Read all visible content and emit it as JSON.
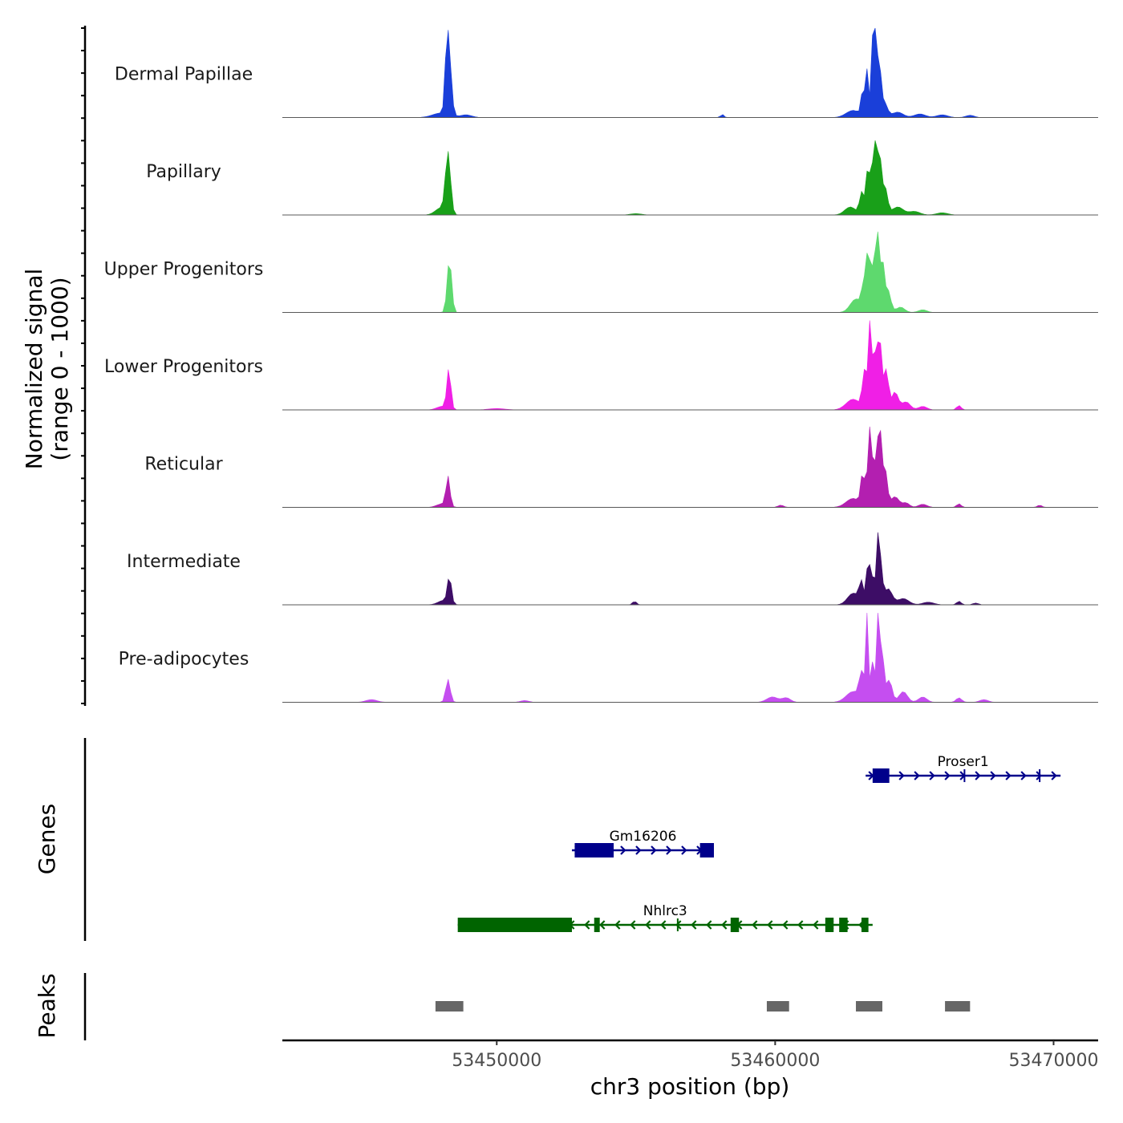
{
  "chart_data": {
    "type": "area",
    "title": "",
    "xlabel": "chr3 position (bp)",
    "ylabel_line1": "Normalized signal",
    "ylabel_line2": "(range 0 - 1000)",
    "genes_label": "Genes",
    "peaks_label": "Peaks",
    "xlim": [
      53442300,
      53471600
    ],
    "ylim": [
      0,
      1000
    ],
    "x_ticks": [
      53450000,
      53460000,
      53470000
    ],
    "x_tick_labels": [
      "53450000",
      "53460000",
      "53470000"
    ],
    "tracks": [
      {
        "name": "Dermal Papillae",
        "color": "#1a3fd9",
        "peaks": [
          [
            53448280,
            700,
            90
          ],
          [
            53448200,
            420,
            60
          ],
          [
            53448000,
            50,
            300
          ],
          [
            53448900,
            30,
            200
          ],
          [
            53458100,
            35,
            60
          ],
          [
            53462800,
            80,
            250
          ],
          [
            53463150,
            300,
            60
          ],
          [
            53463300,
            520,
            50
          ],
          [
            53463500,
            650,
            60
          ],
          [
            53463600,
            860,
            70
          ],
          [
            53463750,
            450,
            60
          ],
          [
            53463900,
            180,
            120
          ],
          [
            53464400,
            60,
            200
          ],
          [
            53465200,
            40,
            200
          ],
          [
            53466000,
            30,
            200
          ],
          [
            53467000,
            25,
            150
          ]
        ]
      },
      {
        "name": "Papillary",
        "color": "#19a019",
        "peaks": [
          [
            53448250,
            680,
            90
          ],
          [
            53448000,
            80,
            200
          ],
          [
            53455000,
            15,
            200
          ],
          [
            53462700,
            90,
            200
          ],
          [
            53463100,
            250,
            70
          ],
          [
            53463300,
            480,
            60
          ],
          [
            53463450,
            600,
            50
          ],
          [
            53463620,
            890,
            70
          ],
          [
            53463780,
            520,
            60
          ],
          [
            53463950,
            300,
            90
          ],
          [
            53464400,
            90,
            200
          ],
          [
            53465000,
            40,
            200
          ],
          [
            53466000,
            25,
            200
          ]
        ]
      },
      {
        "name": "Upper Progenitors",
        "color": "#5ed96e",
        "peaks": [
          [
            53448300,
            600,
            80
          ],
          [
            53462900,
            150,
            200
          ],
          [
            53463200,
            350,
            80
          ],
          [
            53463350,
            820,
            50
          ],
          [
            53463550,
            780,
            60
          ],
          [
            53463700,
            830,
            50
          ],
          [
            53463850,
            560,
            70
          ],
          [
            53464050,
            250,
            100
          ],
          [
            53464500,
            60,
            150
          ],
          [
            53465300,
            30,
            150
          ]
        ]
      },
      {
        "name": "Lower Progenitors",
        "color": "#f01fe6",
        "peaks": [
          [
            53448280,
            450,
            70
          ],
          [
            53448050,
            40,
            200
          ],
          [
            53450000,
            15,
            300
          ],
          [
            53462800,
            120,
            250
          ],
          [
            53463200,
            420,
            70
          ],
          [
            53463380,
            960,
            50
          ],
          [
            53463500,
            520,
            60
          ],
          [
            53463650,
            780,
            60
          ],
          [
            53463800,
            700,
            60
          ],
          [
            53464000,
            460,
            70
          ],
          [
            53464300,
            200,
            120
          ],
          [
            53464700,
            90,
            150
          ],
          [
            53465300,
            40,
            150
          ],
          [
            53466600,
            50,
            80
          ]
        ]
      },
      {
        "name": "Reticular",
        "color": "#b31fb0",
        "peaks": [
          [
            53448250,
            330,
            70
          ],
          [
            53448050,
            40,
            200
          ],
          [
            53460200,
            25,
            100
          ],
          [
            53462800,
            100,
            250
          ],
          [
            53463150,
            380,
            70
          ],
          [
            53463370,
            960,
            50
          ],
          [
            53463500,
            500,
            50
          ],
          [
            53463650,
            680,
            60
          ],
          [
            53463780,
            760,
            60
          ],
          [
            53463950,
            420,
            80
          ],
          [
            53464300,
            120,
            150
          ],
          [
            53464700,
            50,
            120
          ],
          [
            53465300,
            35,
            150
          ],
          [
            53466600,
            40,
            80
          ],
          [
            53469500,
            25,
            80
          ]
        ]
      },
      {
        "name": "Intermediate",
        "color": "#3d0d66",
        "peaks": [
          [
            53448300,
            300,
            70
          ],
          [
            53448100,
            50,
            200
          ],
          [
            53454950,
            40,
            70
          ],
          [
            53462800,
            130,
            200
          ],
          [
            53463100,
            240,
            80
          ],
          [
            53463350,
            560,
            60
          ],
          [
            53463500,
            280,
            50
          ],
          [
            53463680,
            740,
            60
          ],
          [
            53463800,
            380,
            60
          ],
          [
            53464050,
            180,
            150
          ],
          [
            53464600,
            70,
            200
          ],
          [
            53465500,
            30,
            200
          ],
          [
            53466600,
            40,
            80
          ],
          [
            53467200,
            20,
            100
          ]
        ]
      },
      {
        "name": "Pre-adipocytes",
        "color": "#c54ef0",
        "peaks": [
          [
            53448250,
            260,
            80
          ],
          [
            53445500,
            30,
            200
          ],
          [
            53451000,
            20,
            150
          ],
          [
            53459900,
            60,
            200
          ],
          [
            53460400,
            50,
            150
          ],
          [
            53462800,
            120,
            250
          ],
          [
            53463100,
            300,
            80
          ],
          [
            53463300,
            1000,
            50
          ],
          [
            53463500,
            450,
            60
          ],
          [
            53463700,
            1000,
            60
          ],
          [
            53463850,
            500,
            70
          ],
          [
            53464100,
            250,
            100
          ],
          [
            53464600,
            120,
            150
          ],
          [
            53465300,
            60,
            150
          ],
          [
            53466600,
            50,
            100
          ],
          [
            53467500,
            30,
            150
          ]
        ]
      }
    ],
    "genes": [
      {
        "name": "Proser1",
        "color": "#00008b",
        "strand": "+",
        "start": 53463250,
        "end": 53470250,
        "row": 0,
        "exons": [
          [
            53463500,
            53464100
          ]
        ],
        "ticks": [
          53466800,
          53469500
        ]
      },
      {
        "name": "Gm16206",
        "color": "#00008b",
        "strand": "+",
        "start": 53452700,
        "end": 53457800,
        "row": 1,
        "exons": [
          [
            53452800,
            53454200
          ],
          [
            53457300,
            53457800
          ]
        ],
        "ticks": []
      },
      {
        "name": "Nhlrc3",
        "color": "#006400",
        "strand": "-",
        "start": 53448600,
        "end": 53463500,
        "row": 2,
        "exons": [
          [
            53448600,
            53452700
          ],
          [
            53453500,
            53453700
          ],
          [
            53458400,
            53458700
          ],
          [
            53461800,
            53462100
          ],
          [
            53462300,
            53462600
          ],
          [
            53463100,
            53463350
          ]
        ],
        "ticks": [
          53456500
        ]
      }
    ],
    "peak_regions": [
      [
        53447800,
        53448800
      ],
      [
        53459700,
        53460500
      ],
      [
        53462900,
        53463850
      ],
      [
        53466100,
        53467000
      ]
    ]
  }
}
